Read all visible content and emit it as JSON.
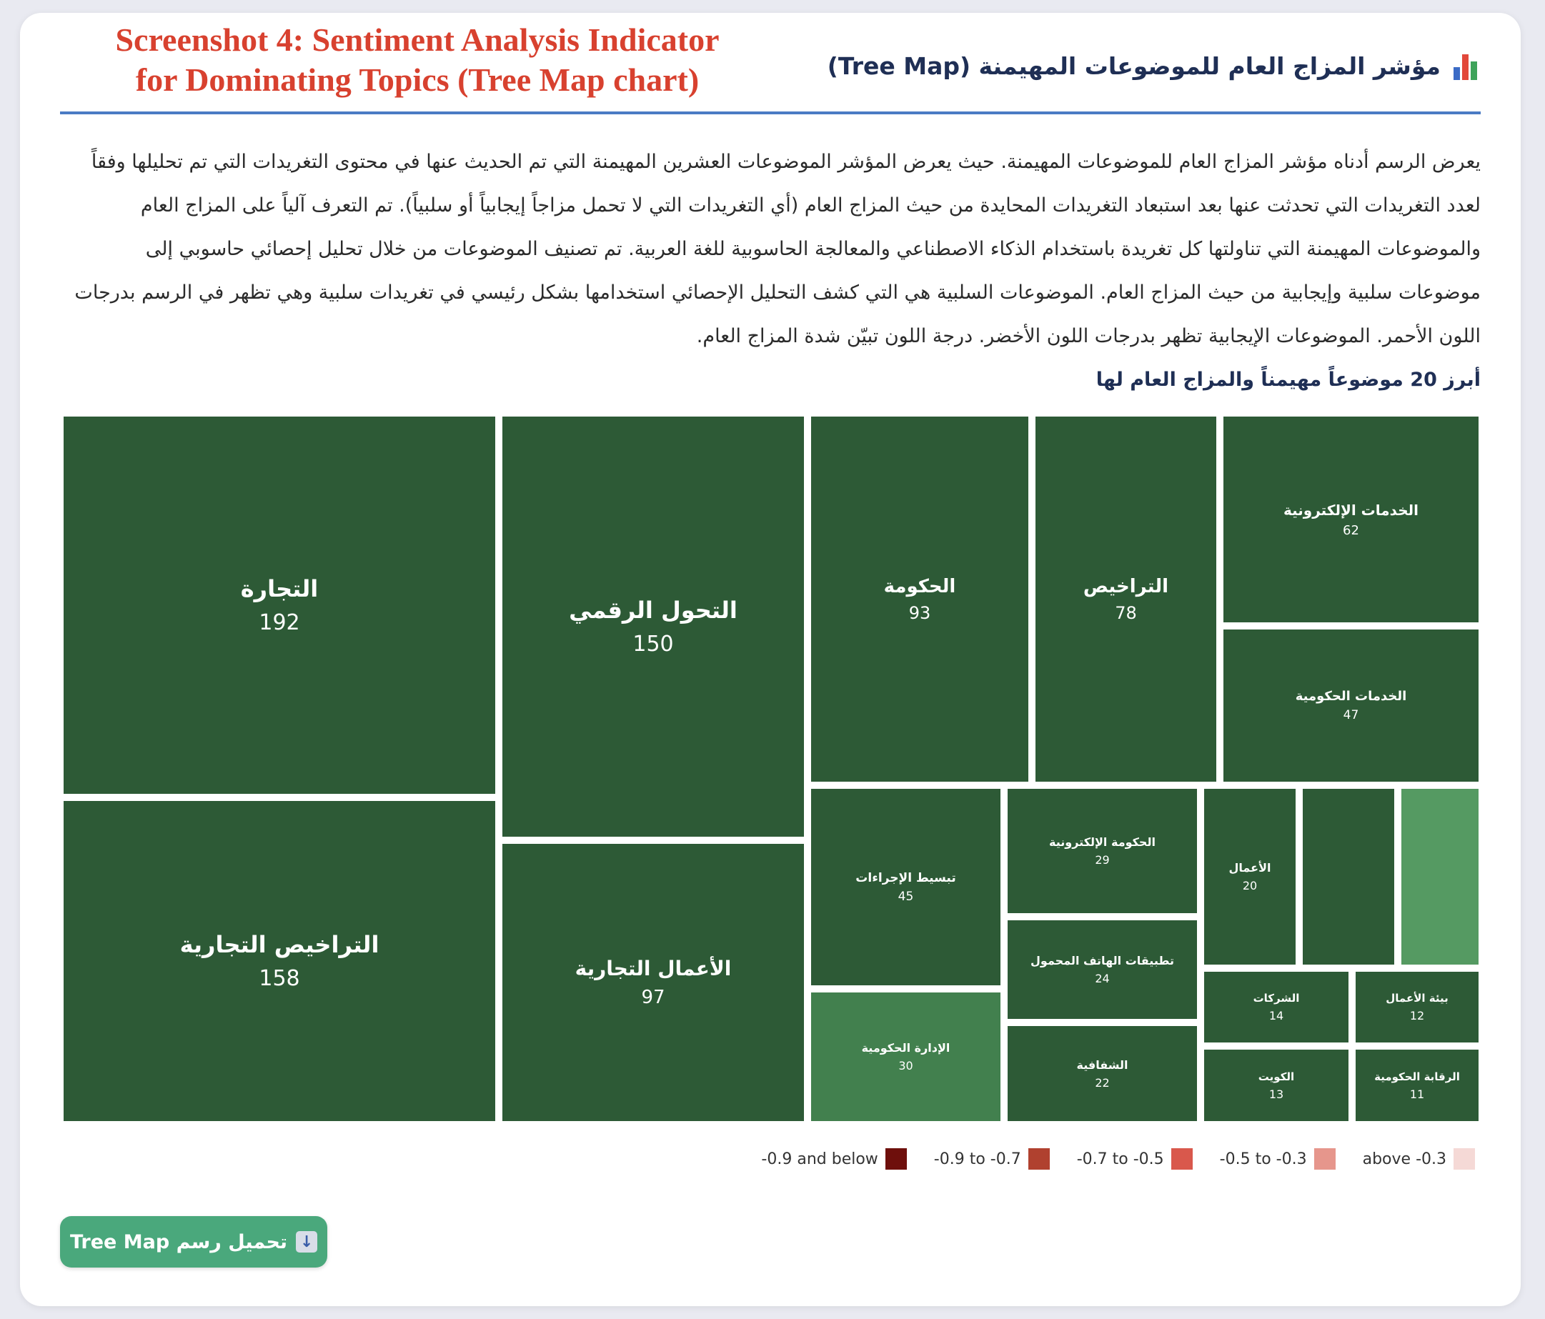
{
  "caption": {
    "line1": "Screenshot 4: Sentiment Analysis Indicator",
    "line2": "for Dominating Topics (Tree Map chart)"
  },
  "header": {
    "title": "مؤشر المزاج العام للموضوعات المهيمنة (Tree Map)",
    "icon": "bar-chart-icon"
  },
  "description": {
    "text": "يعرض الرسم أدناه مؤشر المزاج العام للموضوعات المهيمنة. حيث يعرض المؤشر الموضوعات العشرين المهيمنة التي تم الحديث عنها في محتوى التغريدات التي تم تحليلها وفقاً لعدد التغريدات التي تحدثت عنها بعد استبعاد التغريدات المحايدة من حيث المزاج العام (أي التغريدات التي لا تحمل مزاجاً إيجابياً أو سلبياً). تم التعرف آلياً على المزاج العام والموضوعات المهيمنة التي تناولتها كل تغريدة باستخدام الذكاء الاصطناعي والمعالجة الحاسوبية للغة العربية. تم تصنيف الموضوعات من خلال تحليل إحصائي حاسوبي إلى موضوعات سلبية وإيجابية من حيث المزاج العام. الموضوعات السلبية هي التي كشف التحليل الإحصائي استخدامها بشكل رئيسي في تغريدات سلبية وهي تظهر في الرسم بدرجات اللون الأحمر. الموضوعات الإيجابية تظهر بدرجات اللون الأخضر. درجة اللون تبيّن شدة المزاج العام."
  },
  "chart_title": "أبرز 20 موضوعاً مهيمناً والمزاج العام لها",
  "chart_data": {
    "type": "treemap",
    "colors": {
      "dark_green": "#2d5a36",
      "light_green": "#42804e",
      "lighter_green": "#559a62"
    },
    "items": [
      {
        "label": "التجارة",
        "value": 192,
        "color": "#2d5a36"
      },
      {
        "label": "التراخيص التجارية",
        "value": 158,
        "color": "#2d5a36"
      },
      {
        "label": "التحول الرقمي",
        "value": 150,
        "color": "#2d5a36"
      },
      {
        "label": "الأعمال التجارية",
        "value": 97,
        "color": "#2d5a36"
      },
      {
        "label": "الحكومة",
        "value": 93,
        "color": "#2d5a36"
      },
      {
        "label": "التراخيص",
        "value": 78,
        "color": "#2d5a36"
      },
      {
        "label": "الخدمات الإلكترونية",
        "value": 62,
        "color": "#2d5a36"
      },
      {
        "label": "الخدمات الحكومية",
        "value": 47,
        "color": "#2d5a36"
      },
      {
        "label": "تبسيط الإجراءات",
        "value": 45,
        "color": "#2d5a36"
      },
      {
        "label": "الإدارة الحكومية",
        "value": 30,
        "color": "#42804e"
      },
      {
        "label": "الحكومة الإلكترونية",
        "value": 29,
        "color": "#2d5a36"
      },
      {
        "label": "تطبيقات الهاتف المحمول",
        "value": 24,
        "color": "#2d5a36"
      },
      {
        "label": "الشفافية",
        "value": 22,
        "color": "#2d5a36"
      },
      {
        "label": "الأعمال",
        "value": 20,
        "color": "#2d5a36"
      },
      {
        "label": "",
        "value": null,
        "color": "#2d5a36"
      },
      {
        "label": "",
        "value": null,
        "color": "#559a62"
      },
      {
        "label": "الشركات",
        "value": 14,
        "color": "#2d5a36"
      },
      {
        "label": "بيئة الأعمال",
        "value": 12,
        "color": "#2d5a36"
      },
      {
        "label": "الكويت",
        "value": 13,
        "color": "#2d5a36"
      },
      {
        "label": "الرقابة الحكومية",
        "value": 11,
        "color": "#2d5a36"
      }
    ]
  },
  "legend": [
    {
      "label": "above -0.3",
      "color": "#f5d9d6"
    },
    {
      "label": "-0.5 to -0.3",
      "color": "#e6968c"
    },
    {
      "label": "-0.7 to -0.5",
      "color": "#d9584c"
    },
    {
      "label": "-0.9 to -0.7",
      "color": "#b0412f"
    },
    {
      "label": "-0.9 and below",
      "color": "#6e0f0c"
    }
  ],
  "download_button": {
    "label": "تحميل رسم Tree Map",
    "icon": "download-arrow-icon"
  }
}
